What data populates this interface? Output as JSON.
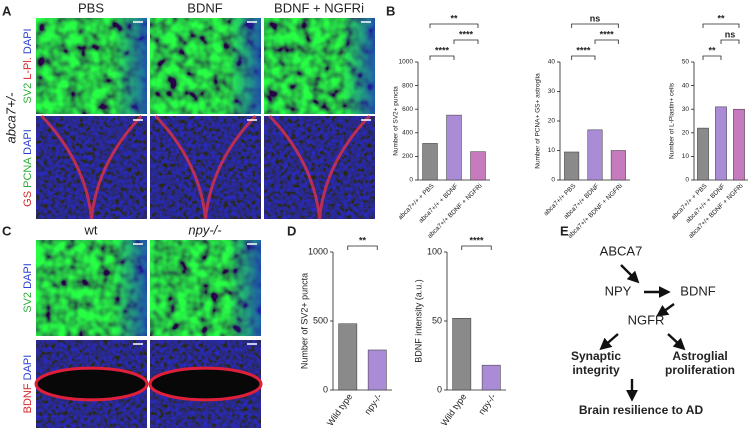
{
  "panel_letters": [
    "A",
    "B",
    "C",
    "D",
    "E"
  ],
  "panel_a": {
    "columns": [
      "PBS",
      "BDNF",
      "BDNF + NGFRi"
    ],
    "genotype": "abca7+/-",
    "rows": [
      [
        {
          "text": "SV2",
          "color": "#2fae3a"
        },
        {
          "text": "L-Pl.",
          "color": "#d6262b"
        },
        {
          "text": "DAPI",
          "color": "#2a3fd1"
        }
      ],
      [
        {
          "text": "GS",
          "color": "#d6262b"
        },
        {
          "text": "PCNA",
          "color": "#2fae3a"
        },
        {
          "text": "DAPI",
          "color": "#2a3fd1"
        }
      ]
    ]
  },
  "panel_c": {
    "columns": [
      "wt",
      "npy-/-"
    ],
    "rows": [
      [
        {
          "text": "SV2",
          "color": "#2fae3a"
        },
        {
          "text": "DAPI",
          "color": "#2a3fd1"
        }
      ],
      [
        {
          "text": "BDNF",
          "color": "#d6262b"
        },
        {
          "text": "DAPI",
          "color": "#2a3fd1"
        }
      ]
    ]
  },
  "chart_data": [
    {
      "type": "bar",
      "ylabel": "Number of SV2+ puncta",
      "categories": [
        "abca7+/+ + PBS",
        "abca7+/+ + BDNF",
        "abca7+/+ BDNF + NGFRi"
      ],
      "values": [
        310,
        550,
        240
      ],
      "colors": [
        "#8a8a8a",
        "#a98bd6",
        "#c77bbf"
      ],
      "ylim": [
        0,
        1000
      ],
      "yticks": [
        0,
        200,
        400,
        600,
        800,
        1000
      ],
      "annotations": [
        "****",
        "**",
        "****"
      ]
    },
    {
      "type": "bar",
      "ylabel": "Number of PCNA+ GS+ astroglia",
      "categories": [
        "abca7+/+ PBS",
        "abca7+/+ BDNF",
        "abca7+/+ BDNF + NGFRi"
      ],
      "values": [
        9.5,
        17,
        10
      ],
      "colors": [
        "#8a8a8a",
        "#a98bd6",
        "#c77bbf"
      ],
      "ylim": [
        0,
        40
      ],
      "yticks": [
        0,
        10,
        20,
        30,
        40
      ],
      "annotations": [
        "****",
        "ns",
        "****"
      ]
    },
    {
      "type": "bar",
      "ylabel": "Number of L-Plastin+ cells",
      "categories": [
        "abca7+/+ + PBS",
        "abca7+/+ + BDNF",
        "abca7+/+ BDNF + NGFRi"
      ],
      "values": [
        22,
        31,
        30
      ],
      "colors": [
        "#8a8a8a",
        "#a98bd6",
        "#c77bbf"
      ],
      "ylim": [
        0,
        50
      ],
      "yticks": [
        0,
        10,
        20,
        30,
        40,
        50
      ],
      "annotations": [
        "**",
        "**",
        "ns"
      ]
    },
    {
      "type": "bar",
      "ylabel": "Number of SV2+ puncta",
      "categories": [
        "Wild type",
        "npy-/-"
      ],
      "values": [
        480,
        290
      ],
      "colors": [
        "#8a8a8a",
        "#a98bd6"
      ],
      "ylim": [
        0,
        1000
      ],
      "yticks": [
        0,
        500,
        1000
      ],
      "annotations": [
        "**"
      ]
    },
    {
      "type": "bar",
      "ylabel": "BDNF intensity (a.u.)",
      "categories": [
        "Wild type",
        "npy-/-"
      ],
      "values": [
        52,
        18
      ],
      "colors": [
        "#8a8a8a",
        "#a98bd6"
      ],
      "ylim": [
        0,
        100
      ],
      "yticks": [
        0,
        50,
        100
      ],
      "annotations": [
        "****"
      ]
    }
  ],
  "diagram": {
    "nodes": [
      "ABCA7",
      "NPY",
      "BDNF",
      "NGFR",
      [
        "Synaptic",
        "integrity"
      ],
      [
        "Astroglial",
        "proliferation"
      ],
      "Brain resilience to AD"
    ]
  }
}
